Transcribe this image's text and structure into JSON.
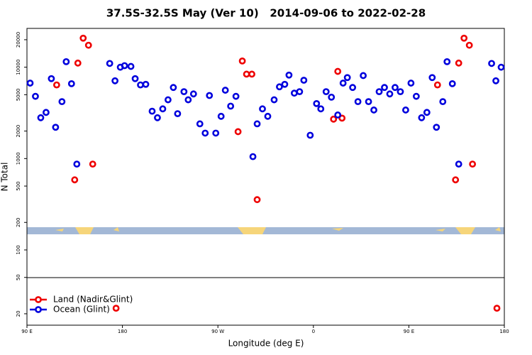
{
  "chart_data": {
    "type": "scatter",
    "title": "37.5S-32.5S May (Ver 10)   2014-09-06 to 2022-02-28",
    "x_label": "Longitude (deg E)",
    "y_label": "N Total",
    "xlim": [
      90,
      540
    ],
    "ylim": [
      15,
      26600
    ],
    "log_y": true,
    "legend": "lower left",
    "xticks": [
      {
        "value": 90,
        "label": "90 E"
      },
      {
        "value": 180,
        "label": "180"
      },
      {
        "value": 270,
        "label": "90 W"
      },
      {
        "value": 360,
        "label": "0"
      },
      {
        "value": 450,
        "label": "90 E"
      },
      {
        "value": 540,
        "label": "180"
      }
    ],
    "yticks": [
      20,
      50,
      100,
      200,
      500,
      1000,
      2000,
      5000,
      10000,
      20000
    ],
    "series": [
      {
        "name": "Land (Nadir&Glint)",
        "color": "#ee0000",
        "x": [
          118,
          135,
          138,
          143,
          148,
          152,
          174,
          289,
          293,
          297,
          302,
          307,
          379,
          383,
          387,
          477,
          494,
          497,
          502,
          507,
          510,
          533
        ],
        "values": [
          6400,
          585,
          11100,
          20800,
          17400,
          870,
          23,
          1970,
          11700,
          8400,
          8400,
          355,
          2700,
          9000,
          2770,
          6400,
          585,
          11100,
          20800,
          17400,
          870,
          23
        ]
      },
      {
        "name": "Ocean (Glint)",
        "color": "#0000dd",
        "x": [
          93,
          98,
          103,
          108,
          113,
          117,
          123,
          127,
          132,
          137,
          168,
          173,
          178,
          182,
          188,
          192,
          197,
          202,
          208,
          213,
          218,
          223,
          228,
          232,
          238,
          242,
          247,
          253,
          258,
          262,
          268,
          273,
          277,
          282,
          287,
          303,
          307,
          312,
          317,
          323,
          328,
          333,
          337,
          342,
          347,
          351,
          357,
          363,
          367,
          372,
          377,
          383,
          388,
          392,
          397,
          402,
          407,
          412,
          417,
          422,
          427,
          432,
          437,
          442,
          447,
          452,
          457,
          462,
          467,
          472,
          476,
          482,
          486,
          491,
          497,
          528,
          532,
          537
        ],
        "values": [
          6700,
          4800,
          2800,
          3200,
          7500,
          2200,
          4200,
          11500,
          6600,
          870,
          11000,
          7100,
          10000,
          10400,
          10200,
          7500,
          6400,
          6500,
          3300,
          2800,
          3500,
          4400,
          6000,
          3100,
          5400,
          4400,
          5100,
          2400,
          1900,
          4900,
          1900,
          2900,
          5600,
          3750,
          4800,
          1050,
          2400,
          3500,
          2900,
          4400,
          6100,
          6500,
          8200,
          5200,
          5400,
          7200,
          1800,
          4000,
          3500,
          5400,
          4700,
          3000,
          6700,
          7700,
          6000,
          4200,
          8100,
          4200,
          3400,
          5400,
          6000,
          5100,
          6000,
          5400,
          3400,
          6700,
          4800,
          2800,
          3200,
          7700,
          2200,
          4200,
          11500,
          6600,
          870,
          11000,
          7100,
          10000
        ]
      }
    ]
  }
}
